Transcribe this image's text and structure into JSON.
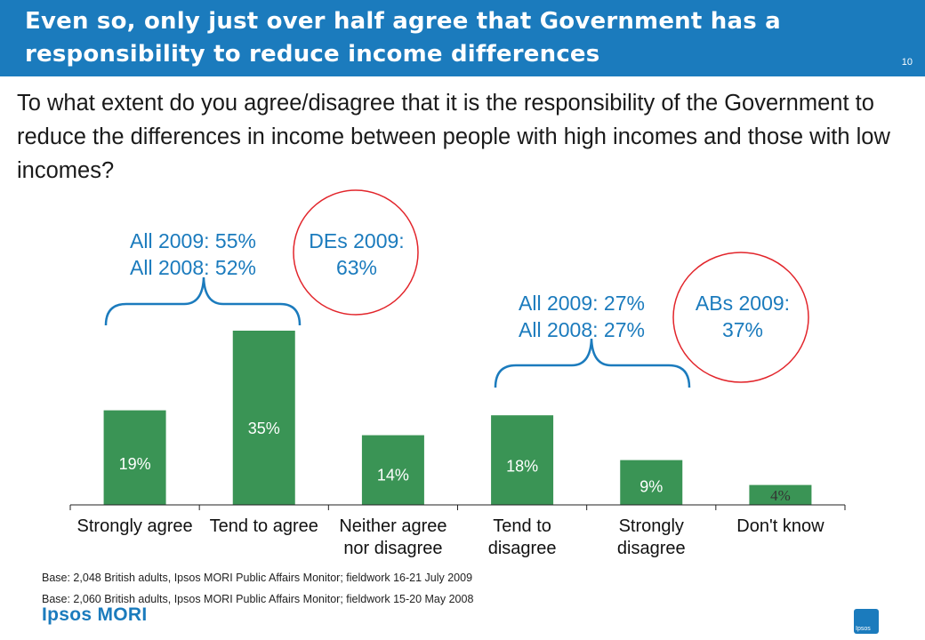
{
  "slide": {
    "title_line1": "Even so, only just over half agree that Government has a",
    "title_line2": "responsibility to reduce income differences",
    "number": "10",
    "question": "To what extent do you agree/disagree that it is the responsibility of the Government to reduce the differences in income between people with high incomes and those with low incomes?"
  },
  "annotations": {
    "agree_line1": "All 2009: 55%",
    "agree_line2": "All 2008: 52%",
    "des_line1": "DEs 2009:",
    "des_line2": "63%",
    "disagree_line1": "All 2009: 27%",
    "disagree_line2": "All 2008: 27%",
    "abs_line1": "ABs 2009:",
    "abs_line2": "37%"
  },
  "footer": {
    "base1": "Base: 2,048 British adults, Ipsos MORI Public Affairs Monitor; fieldwork 16-21 July 2009",
    "base2": "Base: 2,060 British adults, Ipsos MORI Public Affairs Monitor; fieldwork 15-20 May 2008",
    "logo": "Ipsos MORI",
    "badge": "Ipsos"
  },
  "colors": {
    "bar": "#3a9455",
    "accent": "#1b7bbd",
    "circle": "#e2252b"
  },
  "chart_data": {
    "type": "bar",
    "categories": [
      [
        "Strongly agree"
      ],
      [
        "Tend to agree"
      ],
      [
        "Neither agree",
        "nor disagree"
      ],
      [
        "Tend to",
        "disagree"
      ],
      [
        "Strongly",
        "disagree"
      ],
      [
        "Don't know"
      ]
    ],
    "values": [
      19,
      35,
      14,
      18,
      9,
      4
    ],
    "labels": [
      "19%",
      "35%",
      "14%",
      "18%",
      "9%",
      "4%"
    ],
    "ylim": [
      0,
      40
    ],
    "grid": false,
    "legend": "none"
  }
}
